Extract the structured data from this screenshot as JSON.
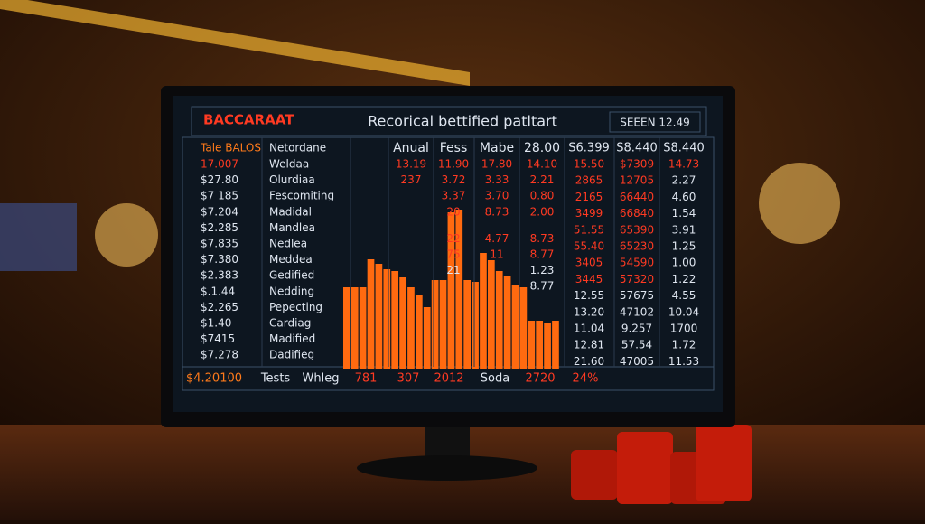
{
  "header": {
    "brand": "BACCARAAT",
    "title": "Recorical bettified patltart",
    "status": "SEEEN 12.49"
  },
  "left_headers": [
    "Tale BALOS",
    "Netordane"
  ],
  "left_rows": [
    [
      "17.007",
      "Weldaa"
    ],
    [
      "$27.80",
      "Olurdiaa"
    ],
    [
      "$7 185",
      "Fescomiting"
    ],
    [
      "$7.204",
      "Madidal"
    ],
    [
      "$2.285",
      "Mandlea"
    ],
    [
      "$7.835",
      "Nedlea"
    ],
    [
      "$7.380",
      "Meddea"
    ],
    [
      "$2.383",
      "Gedified"
    ],
    [
      "$.1.44",
      "Nedding"
    ],
    [
      "$2.265",
      "Pepecting"
    ],
    [
      "$1.40",
      "Cardiag"
    ],
    [
      "$7415",
      "Madified"
    ],
    [
      "$7.278",
      "Dadifieg"
    ]
  ],
  "middle_headers": [
    "Anual",
    "Fess",
    "Mabe",
    "28.00"
  ],
  "middle_rows": [
    [
      "13.19",
      "11.90",
      "17.80",
      "14.10"
    ],
    [
      "237",
      "3.72",
      "3.33",
      "2.21"
    ],
    [
      "",
      "3.37",
      "3.70",
      "0.80"
    ],
    [
      "",
      "20",
      "8.73",
      "2.00"
    ],
    [
      "",
      "22",
      "4.77",
      "8.73"
    ],
    [
      "",
      "75",
      "11",
      "8.77"
    ],
    [
      "",
      "21",
      "",
      "1.23"
    ],
    [
      "",
      "",
      "",
      "8.77"
    ]
  ],
  "right_headers": [
    "S6.399",
    "S8.440",
    "S8.440"
  ],
  "right_rows": [
    [
      "15.50",
      "$7309",
      "14.73"
    ],
    [
      "2865",
      "12705",
      "2.27"
    ],
    [
      "2165",
      "66440",
      "4.60"
    ],
    [
      "3499",
      "66840",
      "1.54"
    ],
    [
      "51.55",
      "65390",
      "3.91"
    ],
    [
      "55.40",
      "65230",
      "1.25"
    ],
    [
      "3405",
      "54590",
      "1.00"
    ],
    [
      "3445",
      "57320",
      "1.22"
    ],
    [
      "12.55",
      "57675",
      "4.55"
    ],
    [
      "13.20",
      "47102",
      "10.04"
    ],
    [
      "11.04",
      "9.257",
      "1700"
    ],
    [
      "12.81",
      "57.54",
      "1.72"
    ],
    [
      "21.60",
      "47005",
      "11.53"
    ]
  ],
  "footer": [
    "$4.20100",
    "Tests",
    "Whleg",
    "781",
    "307",
    "2012",
    "Soda",
    "2720",
    "24%"
  ],
  "bar_values": [
    90,
    90,
    90,
    121,
    116,
    110,
    108,
    101,
    90,
    81,
    68,
    98,
    98,
    173,
    176,
    98,
    96,
    128,
    120,
    108,
    103,
    93,
    90,
    53,
    53,
    51,
    53
  ]
}
